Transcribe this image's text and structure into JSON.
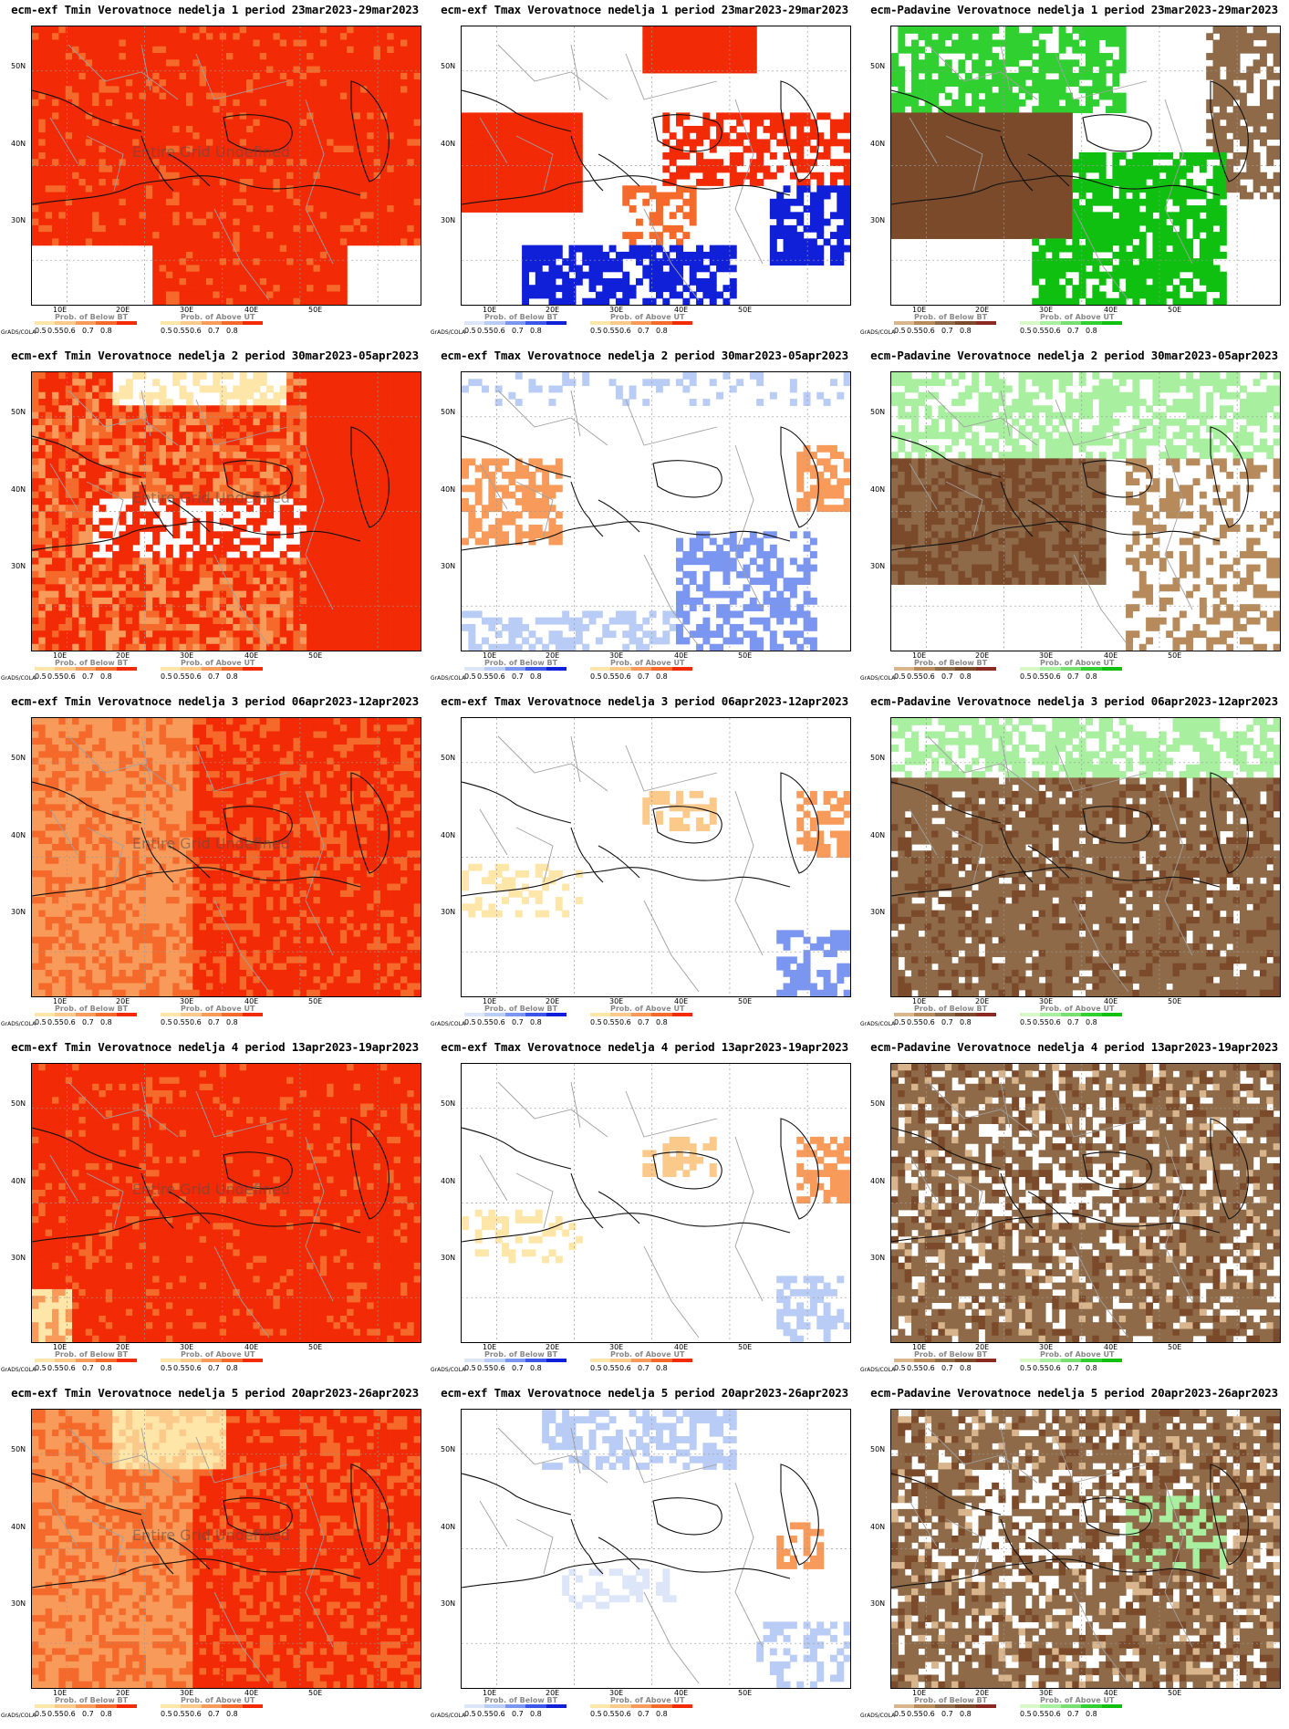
{
  "axis": {
    "lat_ticks": [
      "50N",
      "40N",
      "30N"
    ],
    "lon_ticks": [
      "10E",
      "20E",
      "30E",
      "40E",
      "50E"
    ]
  },
  "watermark": "Entire Grid Undefined",
  "grads_label": "GrADS/COLA",
  "legend_ticks": [
    "0.5",
    "0.55",
    "0.6",
    "0.7",
    "0.8"
  ],
  "legend_titles": {
    "below": "Prob. of Below BT",
    "above": "Prob. of Above UT"
  },
  "colors": {
    "tmin_warm": [
      "#fde6a8",
      "#fbc98a",
      "#f89a5a",
      "#f56a2a",
      "#f22a05"
    ],
    "tmax_cold": [
      "#dce6f8",
      "#b9ccf5",
      "#7b96f0",
      "#3c57e8",
      "#1020d8"
    ],
    "dry": [
      "#d8b58c",
      "#b68a5a",
      "#8f6a48",
      "#7a4a2a",
      "#8a2a22"
    ],
    "wet": [
      "#d8f8c8",
      "#a8f0a0",
      "#78e070",
      "#30d030",
      "#10c010"
    ],
    "coast": "#111111",
    "border": "#a0a0a0"
  },
  "panels": [
    {
      "title": "ecm-exf Tmin Verovatnoce nedelja 1 period 23mar2023-29mar2023",
      "variable": "Tmin",
      "week": 1,
      "watermark": true,
      "map_pattern": "tmin-strong-warm"
    },
    {
      "title": "ecm-exf Tmax Verovatnoce nedelja 1 period 23mar2023-29mar2023",
      "variable": "Tmax",
      "week": 1,
      "watermark": false,
      "map_pattern": "tmax-warm-north-cold-south"
    },
    {
      "title": "ecm-Padavine Verovatnoce nedelja 1 period 23mar2023-29mar2023",
      "variable": "Padavine",
      "week": 1,
      "watermark": false,
      "map_pattern": "precip-wet-north-dry-west"
    },
    {
      "title": "ecm-exf Tmin Verovatnoce nedelja 2 period 30mar2023-05apr2023",
      "variable": "Tmin",
      "week": 2,
      "watermark": true,
      "map_pattern": "tmin-mixed-warm"
    },
    {
      "title": "ecm-exf Tmax Verovatnoce nedelja 2 period 30mar2023-05apr2023",
      "variable": "Tmax",
      "week": 2,
      "watermark": false,
      "map_pattern": "tmax-weak-mixed"
    },
    {
      "title": "ecm-Padavine Verovatnoce nedelja 2 period 30mar2023-05apr2023",
      "variable": "Padavine",
      "week": 2,
      "watermark": false,
      "map_pattern": "precip-wet-north-dry-central"
    },
    {
      "title": "ecm-exf Tmin Verovatnoce nedelja 3 period 06apr2023-12apr2023",
      "variable": "Tmin",
      "week": 3,
      "watermark": true,
      "map_pattern": "tmin-moderate-warm"
    },
    {
      "title": "ecm-exf Tmax Verovatnoce nedelja 3 period 06apr2023-12apr2023",
      "variable": "Tmax",
      "week": 3,
      "watermark": false,
      "map_pattern": "tmax-sparse-warm"
    },
    {
      "title": "ecm-Padavine Verovatnoce nedelja 3 period 06apr2023-12apr2023",
      "variable": "Padavine",
      "week": 3,
      "watermark": false,
      "map_pattern": "precip-dry-dominant"
    },
    {
      "title": "ecm-exf Tmin Verovatnoce nedelja 4 period 13apr2023-19apr2023",
      "variable": "Tmin",
      "week": 4,
      "watermark": true,
      "map_pattern": "tmin-strong-warm-2"
    },
    {
      "title": "ecm-exf Tmax Verovatnoce nedelja 4 period 13apr2023-19apr2023",
      "variable": "Tmax",
      "week": 4,
      "watermark": false,
      "map_pattern": "tmax-sparse-warm-2"
    },
    {
      "title": "ecm-Padavine Verovatnoce nedelja 4 period 13apr2023-19apr2023",
      "variable": "Padavine",
      "week": 4,
      "watermark": false,
      "map_pattern": "precip-dry-patchy"
    },
    {
      "title": "ecm-exf Tmin Verovatnoce nedelja 5 period 20apr2023-26apr2023",
      "variable": "Tmin",
      "week": 5,
      "watermark": true,
      "map_pattern": "tmin-moderate-warm-2"
    },
    {
      "title": "ecm-exf Tmax Verovatnoce nedelja 5 period 20apr2023-26apr2023",
      "variable": "Tmax",
      "week": 5,
      "watermark": false,
      "map_pattern": "tmax-weak-cold"
    },
    {
      "title": "ecm-Padavine Verovatnoce nedelja 5 period 20apr2023-26apr2023",
      "variable": "Padavine",
      "week": 5,
      "watermark": false,
      "map_pattern": "precip-dry-patchy-2"
    }
  ]
}
